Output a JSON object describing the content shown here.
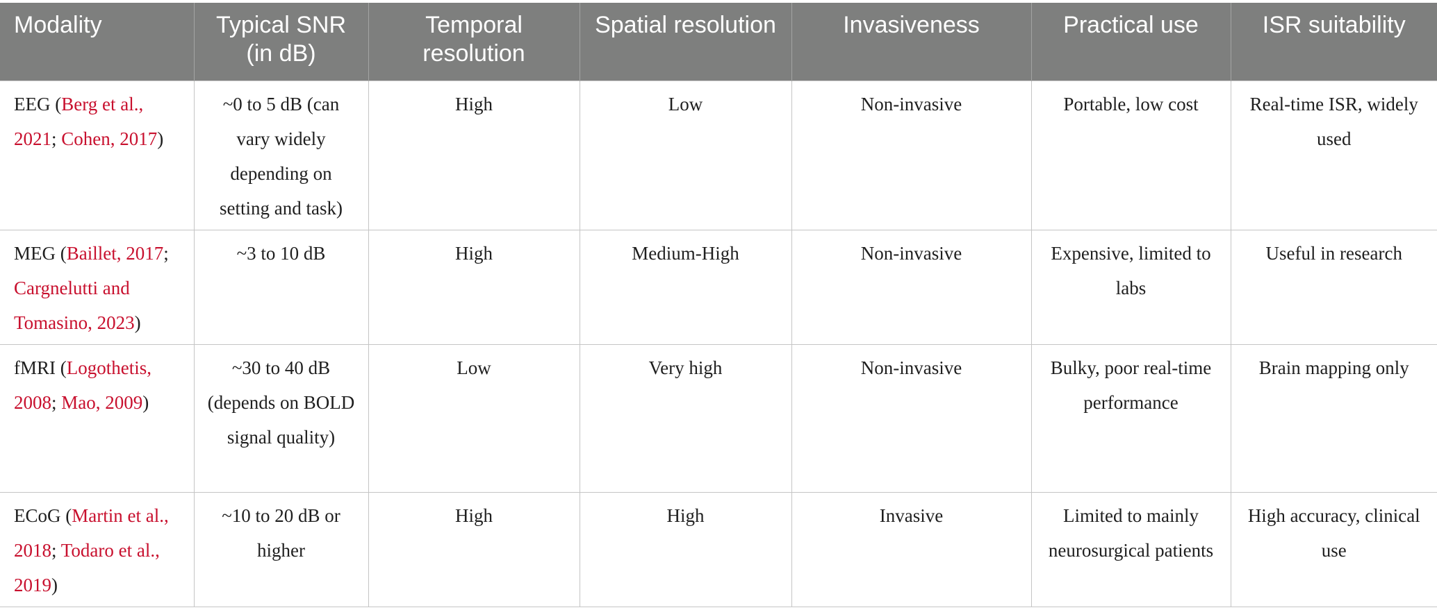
{
  "headers": [
    "Modality",
    "Typical SNR (in dB)",
    "Temporal resolution",
    "Spatial resolution",
    "Invasiveness",
    "Practical use",
    "ISR suitability"
  ],
  "rows": [
    {
      "modality": {
        "name": "EEG",
        "open": " (",
        "cite1": "Berg et al., 2021",
        "sep": "; ",
        "cite2": "Cohen, 2017",
        "close": ")"
      },
      "snr": "~0 to 5 dB (can vary widely depending on setting and task)",
      "temporal": "High",
      "spatial": "Low",
      "invasiveness": "Non-invasive",
      "practical": "Portable, low cost",
      "isr": "Real-time ISR, widely used"
    },
    {
      "modality": {
        "name": "MEG",
        "open": " (",
        "cite1": "Baillet, 2017",
        "sep": "; ",
        "cite2": "Cargnelutti and Tomasino, 2023",
        "close": ")"
      },
      "snr": "~3 to 10 dB",
      "temporal": "High",
      "spatial": "Medium-High",
      "invasiveness": "Non-invasive",
      "practical": "Expensive, limited to labs",
      "isr": "Useful in research"
    },
    {
      "modality": {
        "name": "fMRI",
        "open": " (",
        "cite1": "Logothetis, 2008",
        "sep": "; ",
        "cite2": "Mao, 2009",
        "close": ")"
      },
      "snr": "~30 to 40 dB (depends on BOLD signal quality)",
      "temporal": "Low",
      "spatial": "Very high",
      "invasiveness": "Non-invasive",
      "practical": "Bulky, poor real-time performance",
      "isr": "Brain mapping only"
    },
    {
      "modality": {
        "name": "ECoG",
        "open": " (",
        "cite1": "Martin et al., 2018",
        "sep": "; ",
        "cite2": "Todaro et al., 2019",
        "close": ")"
      },
      "snr": "~10 to 20 dB or higher",
      "temporal": "High",
      "spatial": "High",
      "invasiveness": "Invasive",
      "practical": "Limited to mainly neurosurgical patients",
      "isr": "High accuracy, clinical use"
    }
  ],
  "colors": {
    "header_bg": "#7e7f7e",
    "header_text": "#ffffff",
    "citation": "#c8102e",
    "body_text": "#1f1f1f",
    "grid": "#c5c5c5"
  }
}
